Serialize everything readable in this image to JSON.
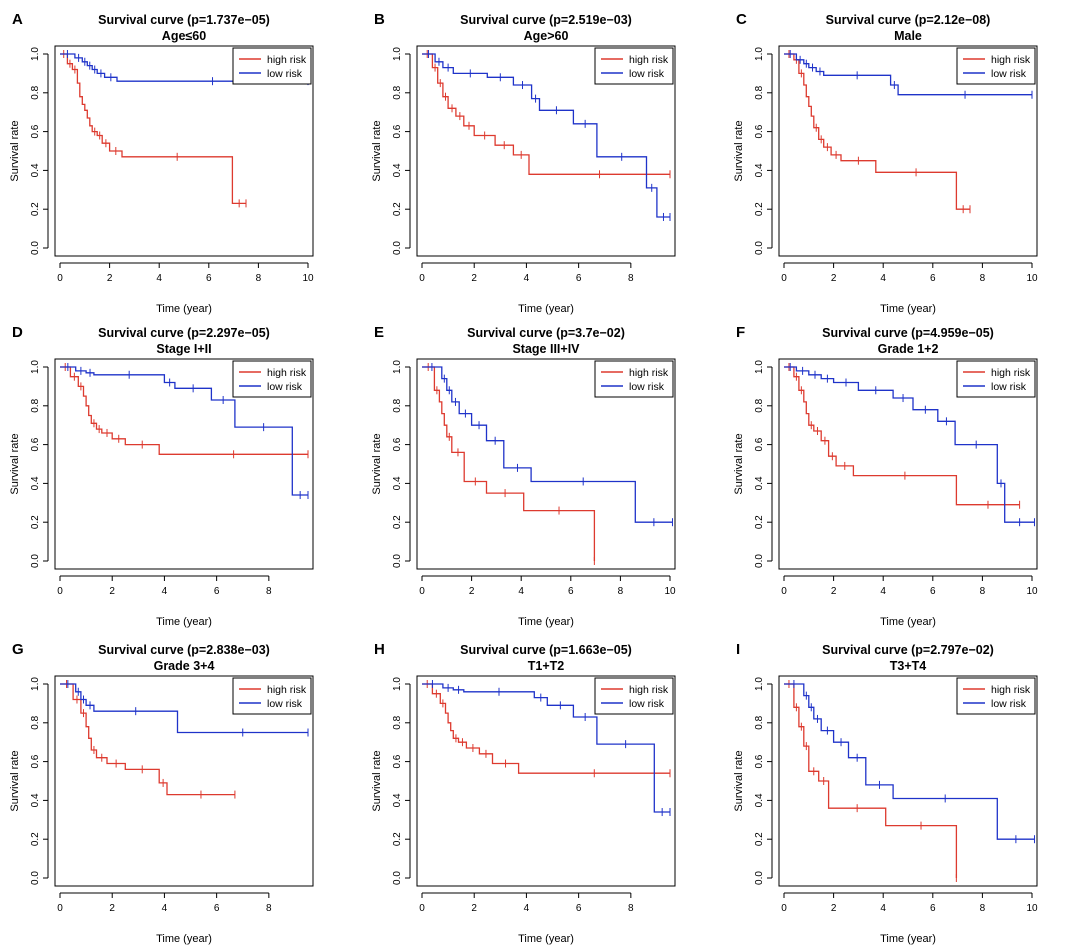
{
  "figure": {
    "colors": {
      "high_risk": "#dd3a2f",
      "low_risk": "#1f33c9",
      "axis": "#000000"
    }
  },
  "chart_data": [
    {
      "type": "line",
      "letter": "A",
      "title": "Survival curve (p=1.737e−05)",
      "subtitle": "Age≤60",
      "xlabel": "Time (year)",
      "ylabel": "Survival rate",
      "xlim": [
        0,
        10
      ],
      "ylim": [
        0,
        1
      ],
      "xticks": [
        0,
        2,
        4,
        6,
        8,
        10
      ],
      "yticks": [
        0.0,
        0.2,
        0.4,
        0.6,
        0.8,
        1.0
      ],
      "legend": {
        "position": "top-right",
        "entries": [
          "high risk",
          "low risk"
        ]
      },
      "series": [
        {
          "name": "high risk",
          "color": "#dd3a2f",
          "x": [
            0,
            0.3,
            0.5,
            0.7,
            0.8,
            0.9,
            1.0,
            1.1,
            1.2,
            1.3,
            1.5,
            1.7,
            2.0,
            2.5,
            6.95,
            7.5
          ],
          "y": [
            1.0,
            0.95,
            0.92,
            0.85,
            0.78,
            0.74,
            0.71,
            0.67,
            0.63,
            0.6,
            0.58,
            0.54,
            0.5,
            0.47,
            0.23,
            0.23
          ]
        },
        {
          "name": "low risk",
          "color": "#1f33c9",
          "x": [
            0,
            0.6,
            0.9,
            1.1,
            1.3,
            1.5,
            1.8,
            2.3,
            10.0
          ],
          "y": [
            1.0,
            0.98,
            0.96,
            0.94,
            0.92,
            0.9,
            0.88,
            0.86,
            0.86
          ]
        }
      ]
    },
    {
      "type": "line",
      "letter": "B",
      "title": "Survival curve (p=2.519e−03)",
      "subtitle": "Age>60",
      "xlabel": "Time (year)",
      "ylabel": "Survival rate",
      "xlim": [
        0,
        9.5
      ],
      "ylim": [
        0,
        1
      ],
      "xticks": [
        0,
        2,
        4,
        6,
        8
      ],
      "yticks": [
        0.0,
        0.2,
        0.4,
        0.6,
        0.8,
        1.0
      ],
      "legend": {
        "position": "top-right",
        "entries": [
          "high risk",
          "low risk"
        ]
      },
      "series": [
        {
          "name": "high risk",
          "color": "#dd3a2f",
          "x": [
            0,
            0.4,
            0.6,
            0.8,
            1.0,
            1.3,
            1.6,
            2.0,
            2.8,
            3.5,
            4.1,
            9.5
          ],
          "y": [
            1.0,
            0.93,
            0.85,
            0.78,
            0.72,
            0.68,
            0.63,
            0.58,
            0.53,
            0.48,
            0.38,
            0.38
          ]
        },
        {
          "name": "low risk",
          "color": "#1f33c9",
          "x": [
            0,
            0.5,
            0.8,
            1.2,
            2.5,
            3.5,
            4.2,
            4.5,
            5.8,
            6.7,
            8.6,
            9.0,
            9.5
          ],
          "y": [
            1.0,
            0.96,
            0.93,
            0.9,
            0.88,
            0.84,
            0.77,
            0.71,
            0.64,
            0.47,
            0.31,
            0.16,
            0.16
          ]
        }
      ]
    },
    {
      "type": "line",
      "letter": "C",
      "title": "Survival curve (p=2.12e−08)",
      "subtitle": "Male",
      "xlabel": "Time (year)",
      "ylabel": "Survival rate",
      "xlim": [
        0,
        10
      ],
      "ylim": [
        0,
        1
      ],
      "xticks": [
        0,
        2,
        4,
        6,
        8,
        10
      ],
      "yticks": [
        0.0,
        0.2,
        0.4,
        0.6,
        0.8,
        1.0
      ],
      "legend": {
        "position": "top-right",
        "entries": [
          "high risk",
          "low risk"
        ]
      },
      "series": [
        {
          "name": "high risk",
          "color": "#dd3a2f",
          "x": [
            0,
            0.4,
            0.6,
            0.8,
            0.9,
            1.0,
            1.1,
            1.2,
            1.4,
            1.6,
            1.9,
            2.3,
            3.7,
            6.95,
            7.5
          ],
          "y": [
            1.0,
            0.97,
            0.9,
            0.84,
            0.78,
            0.73,
            0.68,
            0.62,
            0.56,
            0.52,
            0.48,
            0.45,
            0.39,
            0.2,
            0.2
          ]
        },
        {
          "name": "low risk",
          "color": "#1f33c9",
          "x": [
            0,
            0.5,
            0.8,
            1.0,
            1.3,
            1.6,
            4.3,
            4.6,
            10.0
          ],
          "y": [
            1.0,
            0.97,
            0.95,
            0.93,
            0.91,
            0.89,
            0.84,
            0.79,
            0.79
          ]
        }
      ]
    },
    {
      "type": "line",
      "letter": "D",
      "title": "Survival curve (p=2.297e−05)",
      "subtitle": "Stage I+II",
      "xlabel": "Time (year)",
      "ylabel": "Survival rate",
      "xlim": [
        0,
        9.5
      ],
      "ylim": [
        0,
        1
      ],
      "xticks": [
        0,
        2,
        4,
        6,
        8
      ],
      "yticks": [
        0.0,
        0.2,
        0.4,
        0.6,
        0.8,
        1.0
      ],
      "legend": {
        "position": "top-right",
        "entries": [
          "high risk",
          "low risk"
        ]
      },
      "series": [
        {
          "name": "high risk",
          "color": "#dd3a2f",
          "x": [
            0,
            0.4,
            0.7,
            0.9,
            1.0,
            1.1,
            1.2,
            1.4,
            1.6,
            2.0,
            2.5,
            3.8,
            9.5
          ],
          "y": [
            1.0,
            0.95,
            0.9,
            0.85,
            0.8,
            0.75,
            0.71,
            0.68,
            0.66,
            0.63,
            0.6,
            0.55,
            0.55
          ]
        },
        {
          "name": "low risk",
          "color": "#1f33c9",
          "x": [
            0,
            0.6,
            1.0,
            1.3,
            4.0,
            4.4,
            5.8,
            6.7,
            8.9,
            9.5
          ],
          "y": [
            1.0,
            0.98,
            0.97,
            0.96,
            0.92,
            0.89,
            0.83,
            0.69,
            0.34,
            0.34
          ]
        }
      ]
    },
    {
      "type": "line",
      "letter": "E",
      "title": "Survival curve (p=3.7e−02)",
      "subtitle": "Stage III+IV",
      "xlabel": "Time (year)",
      "ylabel": "Survival rate",
      "xlim": [
        0,
        10
      ],
      "ylim": [
        0,
        1
      ],
      "xticks": [
        0,
        2,
        4,
        6,
        8,
        10
      ],
      "yticks": [
        0.0,
        0.2,
        0.4,
        0.6,
        0.8,
        1.0
      ],
      "legend": {
        "position": "top-right",
        "entries": [
          "high risk",
          "low risk"
        ]
      },
      "series": [
        {
          "name": "high risk",
          "color": "#dd3a2f",
          "x": [
            0,
            0.5,
            0.7,
            0.8,
            0.9,
            1.0,
            1.2,
            1.7,
            2.6,
            4.1,
            6.95,
            6.95
          ],
          "y": [
            1.0,
            0.88,
            0.82,
            0.76,
            0.7,
            0.64,
            0.56,
            0.41,
            0.35,
            0.26,
            0.26,
            0.0
          ]
        },
        {
          "name": "low risk",
          "color": "#1f33c9",
          "x": [
            0,
            0.8,
            1.0,
            1.2,
            1.5,
            2.0,
            2.6,
            3.3,
            4.4,
            8.6,
            10.1
          ],
          "y": [
            1.0,
            0.94,
            0.88,
            0.82,
            0.76,
            0.7,
            0.62,
            0.48,
            0.41,
            0.2,
            0.2
          ]
        }
      ]
    },
    {
      "type": "line",
      "letter": "F",
      "title": "Survival curve (p=4.959e−05)",
      "subtitle": "Grade 1+2",
      "xlabel": "Time (year)",
      "ylabel": "Survival rate",
      "xlim": [
        0,
        10
      ],
      "ylim": [
        0,
        1
      ],
      "xticks": [
        0,
        2,
        4,
        6,
        8,
        10
      ],
      "yticks": [
        0.0,
        0.2,
        0.4,
        0.6,
        0.8,
        1.0
      ],
      "legend": {
        "position": "top-right",
        "entries": [
          "high risk",
          "low risk"
        ]
      },
      "series": [
        {
          "name": "high risk",
          "color": "#dd3a2f",
          "x": [
            0,
            0.4,
            0.6,
            0.8,
            0.9,
            1.0,
            1.2,
            1.5,
            1.8,
            2.1,
            2.8,
            6.95,
            9.5
          ],
          "y": [
            1.0,
            0.95,
            0.88,
            0.82,
            0.76,
            0.7,
            0.67,
            0.62,
            0.54,
            0.49,
            0.44,
            0.29,
            0.29
          ]
        },
        {
          "name": "low risk",
          "color": "#1f33c9",
          "x": [
            0,
            0.5,
            1.0,
            1.5,
            2.0,
            3.0,
            4.4,
            5.2,
            6.2,
            6.9,
            8.6,
            8.9,
            10.1
          ],
          "y": [
            1.0,
            0.98,
            0.96,
            0.94,
            0.92,
            0.88,
            0.84,
            0.78,
            0.72,
            0.6,
            0.4,
            0.2,
            0.2
          ]
        }
      ]
    },
    {
      "type": "line",
      "letter": "G",
      "title": "Survival curve (p=2.838e−03)",
      "subtitle": "Grade 3+4",
      "xlabel": "Time (year)",
      "ylabel": "Survival rate",
      "xlim": [
        0,
        9.5
      ],
      "ylim": [
        0,
        1
      ],
      "xticks": [
        0,
        2,
        4,
        6,
        8
      ],
      "yticks": [
        0.0,
        0.2,
        0.4,
        0.6,
        0.8,
        1.0
      ],
      "legend": {
        "position": "top-right",
        "entries": [
          "high risk",
          "low risk"
        ]
      },
      "series": [
        {
          "name": "high risk",
          "color": "#dd3a2f",
          "x": [
            0,
            0.5,
            0.8,
            1.0,
            1.1,
            1.2,
            1.4,
            1.8,
            2.5,
            3.8,
            4.1,
            6.7
          ],
          "y": [
            1.0,
            0.92,
            0.85,
            0.78,
            0.72,
            0.66,
            0.62,
            0.59,
            0.56,
            0.49,
            0.43,
            0.43
          ]
        },
        {
          "name": "low risk",
          "color": "#1f33c9",
          "x": [
            0,
            0.6,
            0.8,
            1.0,
            1.3,
            4.5,
            9.5
          ],
          "y": [
            1.0,
            0.96,
            0.92,
            0.89,
            0.86,
            0.75,
            0.75
          ]
        }
      ]
    },
    {
      "type": "line",
      "letter": "H",
      "title": "Survival curve (p=1.663e−05)",
      "subtitle": "T1+T2",
      "xlabel": "Time (year)",
      "ylabel": "Survival rate",
      "xlim": [
        0,
        9.5
      ],
      "ylim": [
        0,
        1
      ],
      "xticks": [
        0,
        2,
        4,
        6,
        8
      ],
      "yticks": [
        0.0,
        0.2,
        0.4,
        0.6,
        0.8,
        1.0
      ],
      "legend": {
        "position": "top-right",
        "entries": [
          "high risk",
          "low risk"
        ]
      },
      "series": [
        {
          "name": "high risk",
          "color": "#dd3a2f",
          "x": [
            0,
            0.4,
            0.7,
            0.9,
            1.0,
            1.1,
            1.2,
            1.4,
            1.7,
            2.2,
            2.7,
            3.7,
            9.5
          ],
          "y": [
            1.0,
            0.95,
            0.9,
            0.85,
            0.8,
            0.76,
            0.72,
            0.7,
            0.67,
            0.64,
            0.59,
            0.54,
            0.54
          ]
        },
        {
          "name": "low risk",
          "color": "#1f33c9",
          "x": [
            0,
            0.8,
            1.2,
            1.6,
            4.3,
            4.8,
            5.8,
            6.7,
            8.9,
            9.5
          ],
          "y": [
            1.0,
            0.98,
            0.97,
            0.96,
            0.93,
            0.89,
            0.83,
            0.69,
            0.34,
            0.34
          ]
        }
      ]
    },
    {
      "type": "line",
      "letter": "I",
      "title": "Survival curve (p=2.797e−02)",
      "subtitle": "T3+T4",
      "xlabel": "Time (year)",
      "ylabel": "Survival rate",
      "xlim": [
        0,
        10
      ],
      "ylim": [
        0,
        1
      ],
      "xticks": [
        0,
        2,
        4,
        6,
        8,
        10
      ],
      "yticks": [
        0.0,
        0.2,
        0.4,
        0.6,
        0.8,
        1.0
      ],
      "legend": {
        "position": "top-right",
        "entries": [
          "high risk",
          "low risk"
        ]
      },
      "series": [
        {
          "name": "high risk",
          "color": "#dd3a2f",
          "x": [
            0,
            0.4,
            0.6,
            0.8,
            1.0,
            1.4,
            1.8,
            4.1,
            6.95,
            6.95
          ],
          "y": [
            1.0,
            0.88,
            0.78,
            0.68,
            0.55,
            0.5,
            0.36,
            0.27,
            0.27,
            0.0
          ]
        },
        {
          "name": "low risk",
          "color": "#1f33c9",
          "x": [
            0,
            0.8,
            1.0,
            1.2,
            1.5,
            2.0,
            2.6,
            3.3,
            4.4,
            8.6,
            10.1
          ],
          "y": [
            1.0,
            0.94,
            0.88,
            0.82,
            0.76,
            0.7,
            0.62,
            0.48,
            0.41,
            0.2,
            0.2
          ]
        }
      ]
    }
  ]
}
